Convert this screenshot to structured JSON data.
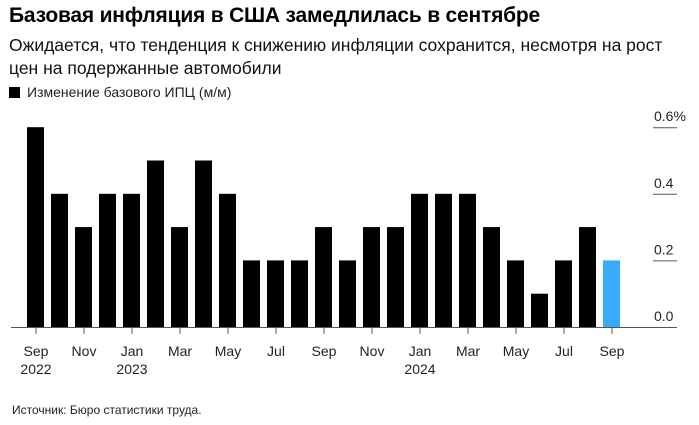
{
  "header": {
    "title": "Базовая инфляция в США замедлилась в сентябре",
    "subtitle": "Ожидается, что тенденция к снижению инфляции сохранится, несмотря на рост цен на подержанные автомобили"
  },
  "legend": {
    "label": "Изменение базового ИПЦ (м/м)",
    "color": "#000000"
  },
  "footer": {
    "source": "Источник: Бюро статистики труда."
  },
  "colors": {
    "bar": "#000000",
    "highlight": "#38abfa",
    "axis": "#555555",
    "grid": "#555555"
  },
  "chart_data": {
    "type": "bar",
    "title": "Базовая инфляция в США замедлилась в сентябре",
    "subtitle": "Ожидается, что тенденция к снижению инфляции сохранится, несмотря на рост цен на подержанные автомобили",
    "xlabel": "",
    "ylabel": "",
    "ylim": [
      0,
      0.6
    ],
    "y_ticks": [
      "0.0",
      "0.2",
      "0.4",
      "0.6%"
    ],
    "y_tick_values": [
      0,
      0.2,
      0.4,
      0.6
    ],
    "grid": true,
    "legend_position": "top-left",
    "categories": [
      "Sep 2022",
      "Oct 2022",
      "Nov 2022",
      "Dec 2022",
      "Jan 2023",
      "Feb 2023",
      "Mar 2023",
      "Apr 2023",
      "May 2023",
      "Jun 2023",
      "Jul 2023",
      "Aug 2023",
      "Sep 2023",
      "Oct 2023",
      "Nov 2023",
      "Dec 2023",
      "Jan 2024",
      "Feb 2024",
      "Mar 2024",
      "Apr 2024",
      "May 2024",
      "Jun 2024",
      "Jul 2024",
      "Aug 2024",
      "Sep 2024"
    ],
    "series": [
      {
        "name": "Изменение базового ИПЦ (м/м)",
        "values": [
          0.6,
          0.4,
          0.3,
          0.4,
          0.4,
          0.5,
          0.3,
          0.5,
          0.4,
          0.2,
          0.2,
          0.2,
          0.3,
          0.2,
          0.3,
          0.3,
          0.4,
          0.4,
          0.4,
          0.3,
          0.2,
          0.1,
          0.2,
          0.3,
          0.2
        ]
      }
    ],
    "highlight_index": 24,
    "x_tick_labels": [
      {
        "month": "Sep",
        "year": "2022",
        "index": 0
      },
      {
        "month": "Nov",
        "year": "",
        "index": 2
      },
      {
        "month": "Jan",
        "year": "2023",
        "index": 4
      },
      {
        "month": "Mar",
        "year": "",
        "index": 6
      },
      {
        "month": "May",
        "year": "",
        "index": 8
      },
      {
        "month": "Jul",
        "year": "",
        "index": 10
      },
      {
        "month": "Sep",
        "year": "",
        "index": 12
      },
      {
        "month": "Nov",
        "year": "",
        "index": 14
      },
      {
        "month": "Jan",
        "year": "2024",
        "index": 16
      },
      {
        "month": "Mar",
        "year": "",
        "index": 18
      },
      {
        "month": "May",
        "year": "",
        "index": 20
      },
      {
        "month": "Jul",
        "year": "",
        "index": 22
      },
      {
        "month": "Sep",
        "year": "",
        "index": 24
      }
    ]
  }
}
